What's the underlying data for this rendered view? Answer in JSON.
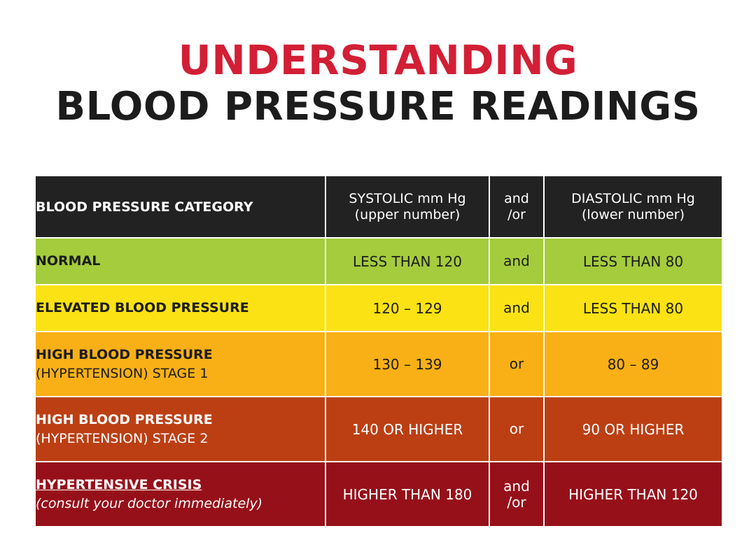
{
  "title": {
    "line1": "UNDERSTANDING",
    "line2": "BLOOD PRESSURE READINGS"
  },
  "colors": {
    "title_red": "#d21f35",
    "header_bg": "#222222",
    "normal": "#a4cc3c",
    "elevated": "#fae214",
    "stage1": "#f9b016",
    "stage2": "#bc3f14",
    "crisis": "#96101a"
  },
  "table": {
    "headers": {
      "category": "BLOOD PRESSURE CATEGORY",
      "systolic_line1": "SYSTOLIC mm Hg",
      "systolic_line2": "(upper number)",
      "conj_line1": "and",
      "conj_line2": "/or",
      "diastolic_line1": "DIASTOLIC mm Hg",
      "diastolic_line2": "(lower number)"
    },
    "rows": [
      {
        "category": "NORMAL",
        "subtitle": "",
        "systolic": "LESS THAN 120",
        "conj_line1": "and",
        "conj_line2": "",
        "diastolic": "LESS THAN 80"
      },
      {
        "category": "ELEVATED BLOOD PRESSURE",
        "subtitle": "",
        "systolic": "120 – 129",
        "conj_line1": "and",
        "conj_line2": "",
        "diastolic": "LESS THAN 80"
      },
      {
        "category": "HIGH BLOOD PRESSURE",
        "subtitle": "(HYPERTENSION) STAGE 1",
        "systolic": "130 – 139",
        "conj_line1": "or",
        "conj_line2": "",
        "diastolic": "80 – 89"
      },
      {
        "category": "HIGH BLOOD PRESSURE",
        "subtitle": "(HYPERTENSION) STAGE 2",
        "systolic": "140 OR HIGHER",
        "conj_line1": "or",
        "conj_line2": "",
        "diastolic": "90 OR HIGHER"
      },
      {
        "category": "HYPERTENSIVE CRISIS",
        "subtitle": "(consult your doctor immediately)",
        "systolic": "HIGHER THAN 180",
        "conj_line1": "and",
        "conj_line2": "/or",
        "diastolic": "HIGHER THAN 120"
      }
    ]
  }
}
